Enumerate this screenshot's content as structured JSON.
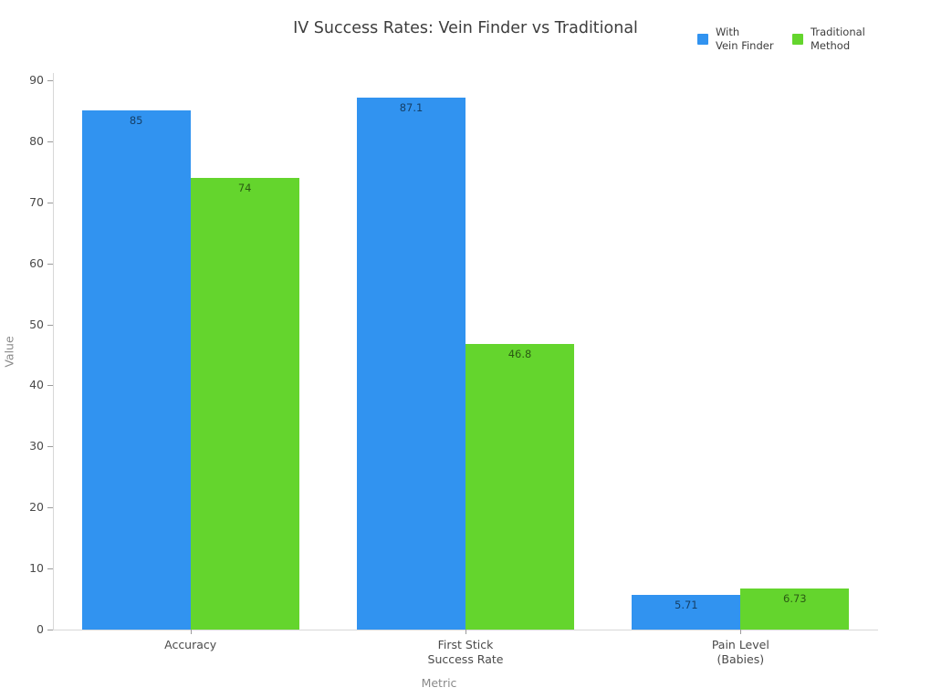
{
  "legend": {
    "items": [
      {
        "label": "With\nVein Finder"
      },
      {
        "label": "Traditional\nMethod"
      }
    ]
  },
  "chart_data": {
    "type": "bar",
    "title": "IV Success Rates: Vein Finder vs Traditional",
    "xlabel": "Metric",
    "ylabel": "Value",
    "categories": [
      "Accuracy",
      "First Stick\nSuccess Rate",
      "Pain Level\n(Babies)"
    ],
    "series": [
      {
        "name": "With Vein Finder",
        "color": "#3193f0",
        "values": [
          85,
          87.1,
          5.71
        ],
        "labels": [
          "85",
          "87.1",
          "5.71"
        ]
      },
      {
        "name": "Traditional Method",
        "color": "#64d52d",
        "values": [
          74,
          46.8,
          6.73
        ],
        "labels": [
          "74",
          "46.8",
          "6.73"
        ]
      }
    ],
    "ylim": [
      0,
      90
    ],
    "yticks": [
      0,
      10,
      20,
      30,
      40,
      50,
      60,
      70,
      80,
      90
    ],
    "grid": false,
    "legend_position": "top-right",
    "bar_value_labels": true
  }
}
